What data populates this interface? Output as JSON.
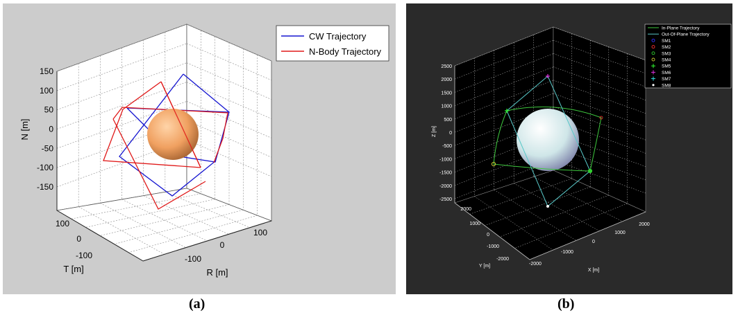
{
  "figure_a": {
    "label": "(a)",
    "colors": {
      "background": "#cccccc",
      "axes": "#ffffff",
      "sphere": "#f0a060",
      "cw": "#1414d0",
      "nbody": "#e01818"
    },
    "chart_data": {
      "type": "line",
      "view": "3d",
      "grid": true,
      "legend_position": "top-right",
      "axes": {
        "x": {
          "label": "R [m]",
          "ticks": [
            "-100",
            "0",
            "100"
          ]
        },
        "y": {
          "label": "T [m]",
          "ticks": [
            "-100",
            "0",
            "100"
          ]
        },
        "z": {
          "label": "N [m]",
          "ticks": [
            "-150",
            "-100",
            "-50",
            "0",
            "50",
            "100",
            "150"
          ]
        }
      },
      "series": [
        {
          "name": "CW Trajectory",
          "color": "#1414d0"
        },
        {
          "name": "N-Body Trajectory",
          "color": "#e01818"
        }
      ]
    }
  },
  "figure_b": {
    "label": "(b)",
    "colors": {
      "background": "#2a2a2a",
      "axes": "#000000",
      "text": "#ffffff",
      "sphere": "#d8ecec",
      "in_plane": "#3ec83e",
      "out_of_plane": "#58c8c8"
    },
    "chart_data": {
      "type": "line",
      "view": "3d",
      "grid": true,
      "legend_position": "top-right",
      "axes": {
        "x": {
          "label": "X [m]",
          "ticks": [
            "-2000",
            "-1000",
            "0",
            "1000",
            "2000"
          ]
        },
        "y": {
          "label": "Y [m]",
          "ticks": [
            "-2000",
            "-1000",
            "0",
            "1000",
            "2000"
          ]
        },
        "z": {
          "label": "Z [m]",
          "ticks": [
            "-2500",
            "-2000",
            "-1500",
            "-1000",
            "-500",
            "0",
            "500",
            "1000",
            "1500",
            "2000",
            "2500"
          ]
        }
      },
      "series": [
        {
          "name": "In-Plane Trajectory",
          "color": "#3ec83e",
          "marker": "line"
        },
        {
          "name": "Out-Of-Plane Trajectory",
          "color": "#58c8c8",
          "marker": "line"
        },
        {
          "name": "SM1",
          "color": "#3030ff",
          "marker": "o"
        },
        {
          "name": "SM2",
          "color": "#ff3030",
          "marker": "o"
        },
        {
          "name": "SM3",
          "color": "#30d030",
          "marker": "o"
        },
        {
          "name": "SM4",
          "color": "#c8c830",
          "marker": "o"
        },
        {
          "name": "SM5",
          "color": "#30ff30",
          "marker": "+"
        },
        {
          "name": "SM6",
          "color": "#e030e0",
          "marker": "+"
        },
        {
          "name": "SM7",
          "color": "#30e0e0",
          "marker": "+"
        },
        {
          "name": "SM8",
          "color": "#ffffff",
          "marker": "*"
        }
      ]
    }
  }
}
